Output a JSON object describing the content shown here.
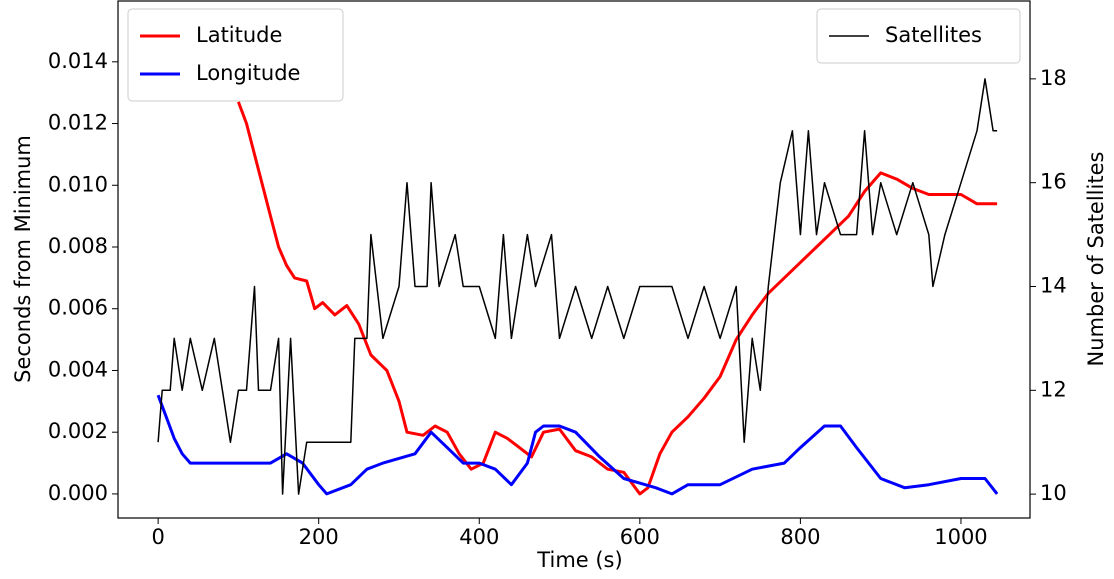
{
  "chart_data": {
    "type": "line",
    "x_label": "Time (s)",
    "y_label": "Seconds from Minimum",
    "y2_label": "Number of Satellites",
    "xlim": [
      -50,
      1086
    ],
    "xticks": [
      0,
      200,
      400,
      600,
      800,
      1000
    ],
    "ylim": [
      -0.00078,
      0.01597
    ],
    "yticks": [
      {
        "value": 0,
        "label": "0.000"
      },
      {
        "value": 0.002,
        "label": "0.002"
      },
      {
        "value": 0.004,
        "label": "0.004"
      },
      {
        "value": 0.006,
        "label": "0.006"
      },
      {
        "value": 0.008,
        "label": "0.008"
      },
      {
        "value": 0.01,
        "label": "0.010"
      },
      {
        "value": 0.012,
        "label": "0.012"
      },
      {
        "value": 0.014,
        "label": "0.014"
      }
    ],
    "y2lim": [
      9.54,
      19.5
    ],
    "y2ticks": [
      10,
      12,
      14,
      16,
      18
    ],
    "legend": "upper left",
    "y2_legend": "upper right",
    "series": [
      {
        "name": "Latitude",
        "color": "#ff0000",
        "width": 3,
        "x": [
          100,
          110,
          120,
          130,
          140,
          150,
          160,
          170,
          185,
          195,
          205,
          220,
          235,
          250,
          265,
          285,
          300,
          310,
          330,
          345,
          360,
          375,
          390,
          405,
          420,
          435,
          450,
          465,
          480,
          500,
          520,
          540,
          560,
          580,
          600,
          610,
          625,
          640,
          660,
          680,
          700,
          720,
          740,
          760,
          780,
          800,
          820,
          840,
          860,
          880,
          900,
          920,
          940,
          960,
          1000,
          1020,
          1045
        ],
        "values": [
          0.0127,
          0.012,
          0.011,
          0.01,
          0.009,
          0.008,
          0.0074,
          0.007,
          0.0069,
          0.006,
          0.0062,
          0.0058,
          0.0061,
          0.0055,
          0.0045,
          0.004,
          0.003,
          0.002,
          0.0019,
          0.0022,
          0.002,
          0.0013,
          0.0008,
          0.001,
          0.002,
          0.0018,
          0.0015,
          0.0012,
          0.002,
          0.0021,
          0.0014,
          0.0012,
          0.0008,
          0.0007,
          0.0,
          0.0002,
          0.0013,
          0.002,
          0.0025,
          0.0031,
          0.0038,
          0.005,
          0.0058,
          0.0065,
          0.007,
          0.0075,
          0.008,
          0.0085,
          0.009,
          0.0098,
          0.0104,
          0.0102,
          0.0099,
          0.0097,
          0.0097,
          0.0094,
          0.0094
        ]
      },
      {
        "name": "Longitude",
        "color": "#0000ff",
        "width": 3,
        "x": [
          0,
          10,
          20,
          30,
          40,
          60,
          100,
          140,
          160,
          180,
          200,
          210,
          240,
          260,
          280,
          320,
          340,
          360,
          380,
          400,
          420,
          440,
          460,
          470,
          480,
          500,
          520,
          550,
          580,
          620,
          640,
          660,
          700,
          740,
          780,
          800,
          830,
          850,
          870,
          900,
          930,
          960,
          1000,
          1030,
          1045
        ],
        "values": [
          0.0032,
          0.0025,
          0.0018,
          0.0013,
          0.001,
          0.001,
          0.001,
          0.001,
          0.0013,
          0.001,
          0.0003,
          0.0,
          0.0003,
          0.0008,
          0.001,
          0.0013,
          0.002,
          0.0015,
          0.001,
          0.001,
          0.0008,
          0.0003,
          0.001,
          0.002,
          0.0022,
          0.0022,
          0.002,
          0.0012,
          0.0005,
          0.0002,
          0.0,
          0.0003,
          0.0003,
          0.0008,
          0.001,
          0.0015,
          0.0022,
          0.0022,
          0.0015,
          0.0005,
          0.0002,
          0.0003,
          0.0005,
          0.0005,
          0.0
        ]
      },
      {
        "name": "Satellites",
        "color": "#000000",
        "width": 1.5,
        "axis": "y2",
        "x": [
          0,
          5,
          15,
          20,
          30,
          40,
          55,
          70,
          80,
          90,
          100,
          110,
          120,
          125,
          140,
          150,
          155,
          165,
          175,
          185,
          200,
          240,
          245,
          260,
          265,
          280,
          300,
          310,
          320,
          335,
          340,
          350,
          370,
          380,
          400,
          420,
          430,
          440,
          460,
          470,
          490,
          500,
          520,
          540,
          560,
          580,
          600,
          620,
          640,
          660,
          680,
          700,
          720,
          730,
          740,
          750,
          760,
          775,
          790,
          800,
          810,
          820,
          830,
          850,
          870,
          880,
          890,
          900,
          920,
          940,
          960,
          965,
          980,
          1000,
          1020,
          1030,
          1040,
          1045
        ],
        "values": [
          11,
          12,
          12,
          13,
          12,
          13,
          12,
          13,
          12,
          11,
          12,
          12,
          14,
          12,
          12,
          13,
          10,
          13,
          10,
          11,
          11,
          11,
          13,
          13,
          15,
          13,
          14,
          16,
          14,
          14,
          16,
          14,
          15,
          14,
          14,
          13,
          15,
          13,
          15,
          14,
          15,
          13,
          14,
          13,
          14,
          13,
          14,
          14,
          14,
          13,
          14,
          13,
          14,
          11,
          13,
          12,
          14,
          16,
          17,
          15,
          17,
          15,
          16,
          15,
          15,
          17,
          15,
          16,
          15,
          16,
          15,
          14,
          15,
          16,
          17,
          18,
          17,
          17
        ]
      }
    ]
  }
}
